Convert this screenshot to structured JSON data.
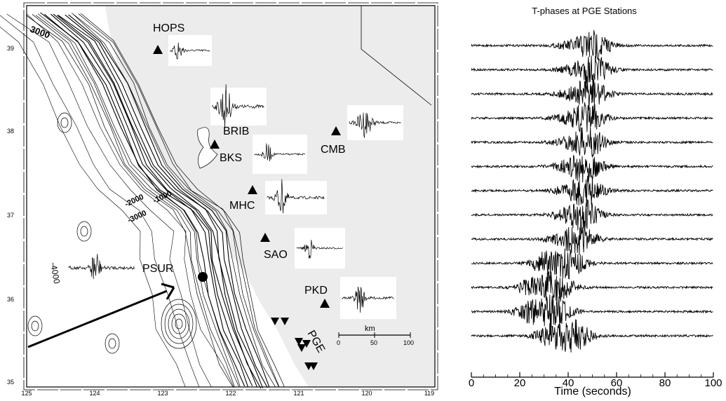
{
  "map": {
    "lat_labels": [
      "39",
      "38",
      "37",
      "36",
      "35"
    ],
    "lon_labels": [
      "125",
      "124",
      "123",
      "122",
      "121",
      "120",
      "119"
    ],
    "contour_labels": [
      "3000",
      "-4000",
      "-2000",
      "-1000",
      "-3000"
    ],
    "stations": [
      "HOPS",
      "BRIB",
      "BKS",
      "CMB",
      "MHC",
      "SAO",
      "PSUR",
      "PKD"
    ],
    "array_label": "PGE",
    "scale": {
      "unit": "km",
      "ticks": [
        "0",
        "50",
        "100"
      ]
    },
    "colors": {
      "land": "#ececec",
      "ocean": "#ffffff",
      "ink": "#000000"
    }
  },
  "chart_data": {
    "type": "line",
    "title": "T-phases at PGE Stations",
    "xlabel": "Time (seconds)",
    "ylabel": "",
    "xlim": [
      0,
      100
    ],
    "x_ticks": [
      "0",
      "20",
      "40",
      "60",
      "80",
      "100"
    ],
    "trace_count": 13,
    "trace_peak_times": [
      50,
      50,
      49,
      48,
      48,
      47,
      47,
      46,
      44,
      40,
      35,
      34,
      42
    ]
  }
}
